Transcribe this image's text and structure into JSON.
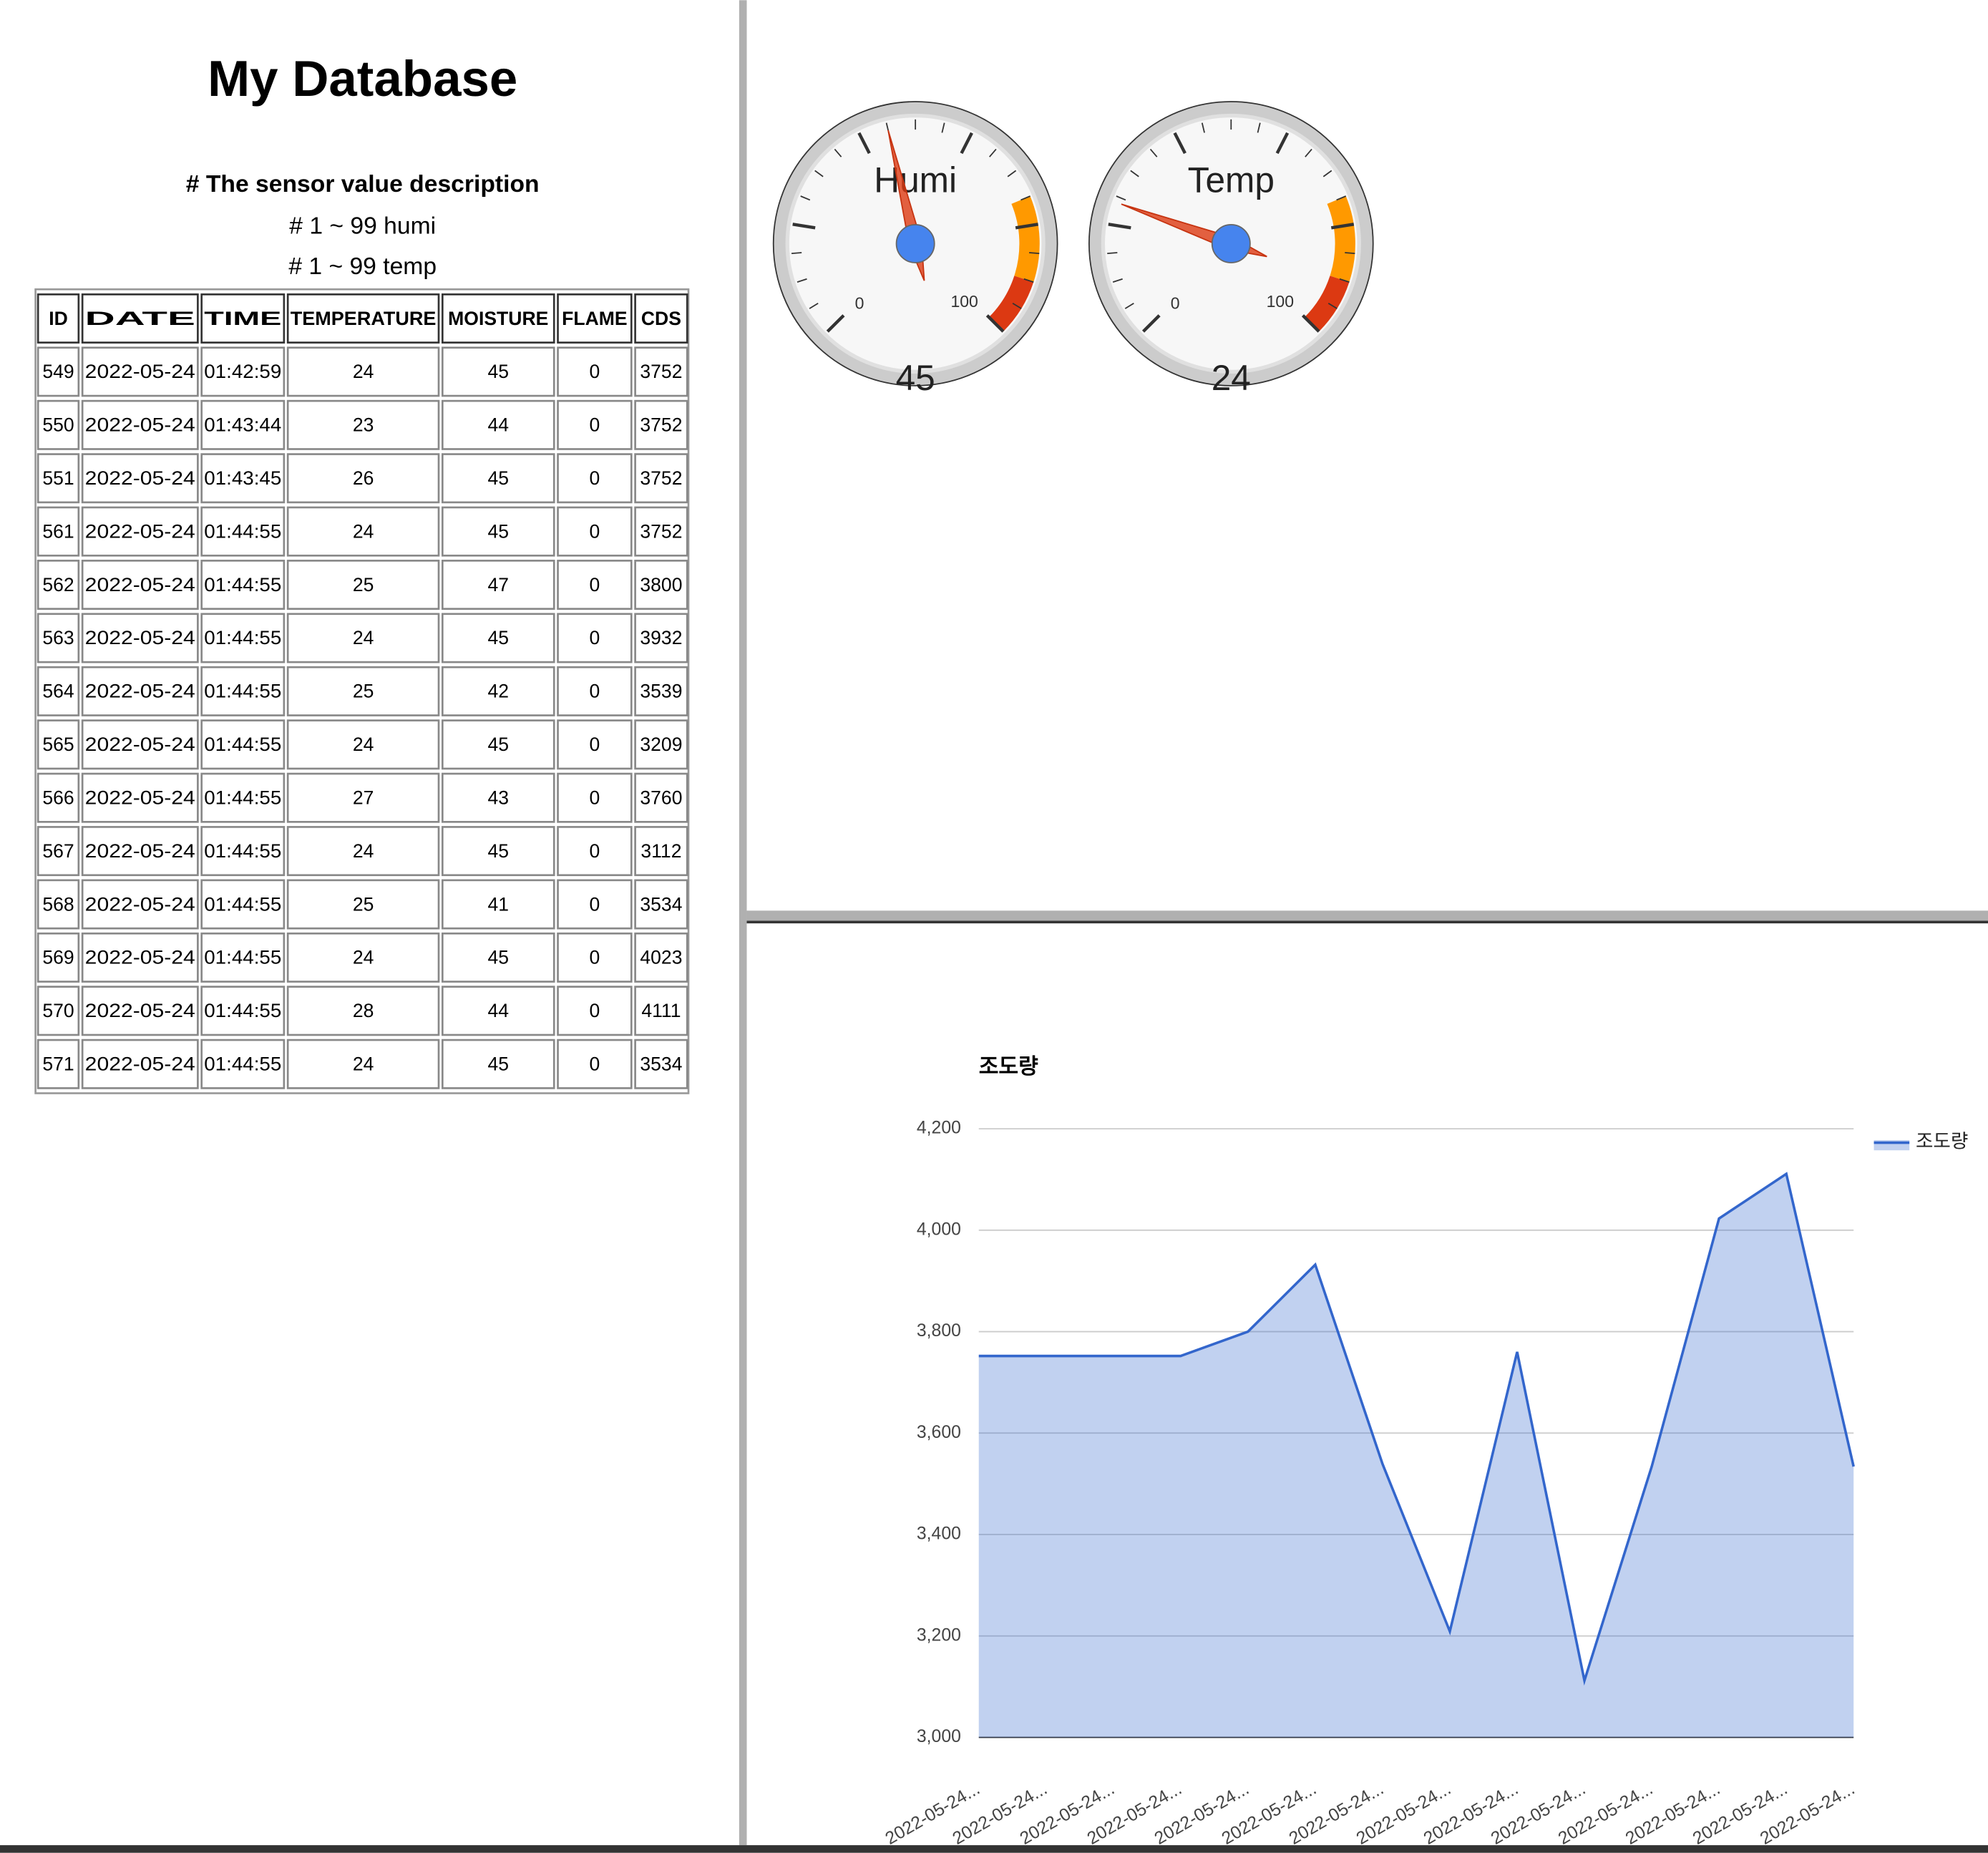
{
  "header": {
    "title": "My Database",
    "description": "# The sensor value description",
    "lines": [
      "# 1 ~ 99 humi",
      "# 1 ~ 99 temp"
    ]
  },
  "table": {
    "columns": [
      "ID",
      "DATE",
      "TIME",
      "TEMPERATURE",
      "MOISTURE",
      "FLAME",
      "CDS"
    ],
    "rows": [
      [
        549,
        "2022-05-24",
        "01:42:59",
        24,
        45,
        0,
        3752
      ],
      [
        550,
        "2022-05-24",
        "01:43:44",
        23,
        44,
        0,
        3752
      ],
      [
        551,
        "2022-05-24",
        "01:43:45",
        26,
        45,
        0,
        3752
      ],
      [
        561,
        "2022-05-24",
        "01:44:55",
        24,
        45,
        0,
        3752
      ],
      [
        562,
        "2022-05-24",
        "01:44:55",
        25,
        47,
        0,
        3800
      ],
      [
        563,
        "2022-05-24",
        "01:44:55",
        24,
        45,
        0,
        3932
      ],
      [
        564,
        "2022-05-24",
        "01:44:55",
        25,
        42,
        0,
        3539
      ],
      [
        565,
        "2022-05-24",
        "01:44:55",
        24,
        45,
        0,
        3209
      ],
      [
        566,
        "2022-05-24",
        "01:44:55",
        27,
        43,
        0,
        3760
      ],
      [
        567,
        "2022-05-24",
        "01:44:55",
        24,
        45,
        0,
        3112
      ],
      [
        568,
        "2022-05-24",
        "01:44:55",
        25,
        41,
        0,
        3534
      ],
      [
        569,
        "2022-05-24",
        "01:44:55",
        24,
        45,
        0,
        4023
      ],
      [
        570,
        "2022-05-24",
        "01:44:55",
        28,
        44,
        0,
        4111
      ],
      [
        571,
        "2022-05-24",
        "01:44:55",
        24,
        45,
        0,
        3534
      ]
    ]
  },
  "gauges": [
    {
      "label": "Humi",
      "value": 45,
      "min": 0,
      "max": 100,
      "yellow": [
        75,
        90
      ],
      "red": [
        90,
        100
      ]
    },
    {
      "label": "Temp",
      "value": 24,
      "min": 0,
      "max": 100,
      "yellow": [
        75,
        90
      ],
      "red": [
        90,
        100
      ]
    }
  ],
  "chart_data": {
    "type": "area",
    "title": "조도량",
    "categories": [
      "2022-05-24...",
      "2022-05-24...",
      "2022-05-24...",
      "2022-05-24...",
      "2022-05-24...",
      "2022-05-24...",
      "2022-05-24...",
      "2022-05-24...",
      "2022-05-24...",
      "2022-05-24...",
      "2022-05-24...",
      "2022-05-24...",
      "2022-05-24...",
      "2022-05-24..."
    ],
    "series": [
      {
        "name": "조도량",
        "color": "#3366cc",
        "values": [
          3752,
          3752,
          3752,
          3752,
          3800,
          3932,
          3539,
          3209,
          3760,
          3112,
          3534,
          4023,
          4111,
          3534
        ]
      }
    ],
    "ylim": [
      3000,
      4200
    ],
    "yticks": [
      {
        "value": 3000,
        "label": "3,000"
      },
      {
        "value": 3200,
        "label": "3,200"
      },
      {
        "value": 3400,
        "label": "3,400"
      },
      {
        "value": 3600,
        "label": "3,600"
      },
      {
        "value": 3800,
        "label": "3,800"
      },
      {
        "value": 4000,
        "label": "4,000"
      },
      {
        "value": 4200,
        "label": "4,200"
      }
    ],
    "grid": true,
    "legend": "right"
  }
}
